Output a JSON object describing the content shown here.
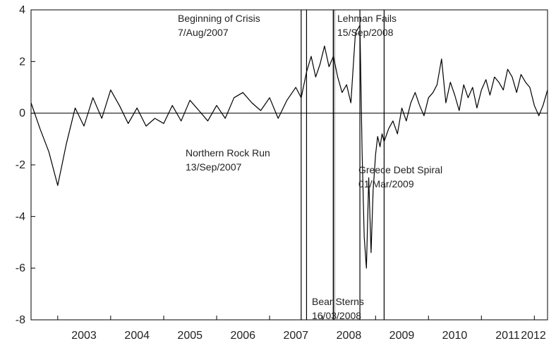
{
  "chart_data": {
    "type": "line",
    "title": "",
    "xlabel": "",
    "ylabel": "",
    "ylim": [
      -8,
      4
    ],
    "xlim": [
      "2002-07-01",
      "2012-04-01"
    ],
    "grid": false,
    "legend": "none",
    "y_ticks": [
      4,
      2,
      0,
      -2,
      -4,
      -6,
      -8
    ],
    "x_ticks": [
      "2003",
      "2004",
      "2005",
      "2006",
      "2007",
      "2008",
      "2009",
      "2010",
      "2011",
      "2012"
    ],
    "reference_line_y": 0,
    "colors": {
      "line": "#000000",
      "shade": "#bbbbbb",
      "axes": "#000000"
    },
    "shaded_period": {
      "start": "2008-03-10",
      "end": "2008-03-24"
    },
    "events": [
      {
        "label": "Beginning of Crisis",
        "date_text": "7/Aug/2007",
        "date": "2007-08-07"
      },
      {
        "label": "Northern Rock Run",
        "date_text": "13/Sep/2007",
        "date": "2007-09-13"
      },
      {
        "label": "Bear Sterns",
        "date_text": "16/03/2008",
        "date": "2008-03-16"
      },
      {
        "label": "Lehman Fails",
        "date_text": "15/Sep/2008",
        "date": "2008-09-15"
      },
      {
        "label": "Greece Debt Spiral",
        "date_text": "01/Mar/2009",
        "date": "2009-03-01"
      }
    ],
    "series": [
      {
        "x": [
          "2002-07-01",
          "2002-09-01",
          "2002-11-01",
          "2003-01-01",
          "2003-03-01",
          "2003-05-01",
          "2003-07-01",
          "2003-09-01",
          "2003-11-01",
          "2004-01-01",
          "2004-03-01",
          "2004-05-01",
          "2004-07-01",
          "2004-09-01",
          "2004-11-01",
          "2005-01-01",
          "2005-03-01",
          "2005-05-01",
          "2005-07-01",
          "2005-09-01",
          "2005-11-01",
          "2006-01-01",
          "2006-03-01",
          "2006-05-01",
          "2006-07-01",
          "2006-09-01",
          "2006-11-01",
          "2007-01-01",
          "2007-03-01",
          "2007-05-01",
          "2007-07-01",
          "2007-08-07",
          "2007-09-13",
          "2007-10-15",
          "2007-11-15",
          "2007-12-15",
          "2008-01-15",
          "2008-02-15",
          "2008-03-16",
          "2008-04-15",
          "2008-05-15",
          "2008-06-15",
          "2008-07-15",
          "2008-08-15",
          "2008-09-15",
          "2008-09-30",
          "2008-10-15",
          "2008-10-30",
          "2008-11-15",
          "2008-12-01",
          "2008-12-15",
          "2009-01-01",
          "2009-01-15",
          "2009-02-01",
          "2009-02-15",
          "2009-03-01",
          "2009-04-01",
          "2009-05-01",
          "2009-06-01",
          "2009-07-01",
          "2009-08-01",
          "2009-09-01",
          "2009-10-01",
          "2009-11-01",
          "2009-12-01",
          "2010-01-01",
          "2010-02-01",
          "2010-03-01",
          "2010-04-01",
          "2010-05-01",
          "2010-06-01",
          "2010-07-01",
          "2010-08-01",
          "2010-09-01",
          "2010-10-01",
          "2010-11-01",
          "2010-12-01",
          "2011-01-01",
          "2011-02-01",
          "2011-03-01",
          "2011-04-01",
          "2011-05-01",
          "2011-06-01",
          "2011-07-01",
          "2011-08-01",
          "2011-09-01",
          "2011-10-01",
          "2011-11-01",
          "2011-12-01",
          "2012-01-01",
          "2012-02-01",
          "2012-03-01",
          "2012-04-01"
        ],
        "values": [
          0.4,
          -0.6,
          -1.5,
          -2.8,
          -1.2,
          0.2,
          -0.5,
          0.6,
          -0.2,
          0.9,
          0.3,
          -0.4,
          0.2,
          -0.5,
          -0.2,
          -0.4,
          0.3,
          -0.3,
          0.5,
          0.1,
          -0.3,
          0.3,
          -0.2,
          0.6,
          0.8,
          0.4,
          0.1,
          0.6,
          -0.2,
          0.5,
          1.0,
          0.6,
          1.6,
          2.2,
          1.4,
          1.9,
          2.6,
          1.8,
          2.2,
          1.4,
          0.8,
          1.1,
          0.4,
          3.1,
          3.4,
          -1.5,
          -4.8,
          -6.0,
          -2.5,
          -5.4,
          -3.0,
          -1.6,
          -0.9,
          -1.3,
          -0.8,
          -1.1,
          -0.6,
          -0.3,
          -0.8,
          0.2,
          -0.3,
          0.4,
          0.8,
          0.3,
          -0.1,
          0.6,
          0.8,
          1.1,
          2.1,
          0.4,
          1.2,
          0.7,
          0.1,
          1.1,
          0.6,
          1.0,
          0.2,
          0.9,
          1.3,
          0.7,
          1.4,
          1.2,
          0.9,
          1.7,
          1.4,
          0.8,
          1.5,
          1.2,
          1.0,
          0.3,
          -0.1,
          0.3,
          0.9
        ]
      }
    ]
  }
}
